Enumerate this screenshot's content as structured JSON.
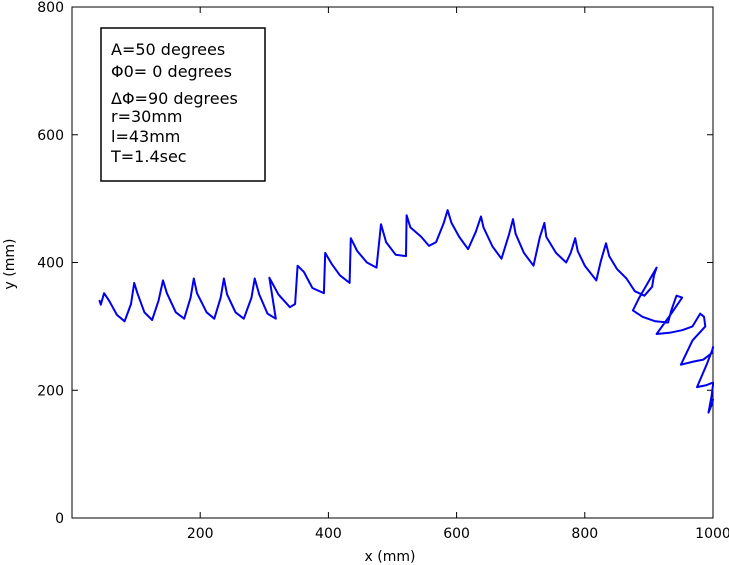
{
  "chart_data": {
    "type": "line",
    "title": "",
    "xlabel": "x (mm)",
    "ylabel": "y (mm)",
    "xlim": [
      0,
      1000
    ],
    "ylim": [
      0,
      800
    ],
    "xticks": [
      {
        "value": 200,
        "label": "200"
      },
      {
        "value": 400,
        "label": "400"
      },
      {
        "value": 600,
        "label": "600"
      },
      {
        "value": 800,
        "label": "800"
      },
      {
        "value": 1000,
        "label": "1000"
      }
    ],
    "yticks": [
      {
        "value": 0,
        "label": "0"
      },
      {
        "value": 200,
        "label": "200"
      },
      {
        "value": 400,
        "label": "400"
      },
      {
        "value": 600,
        "label": "600"
      },
      {
        "value": 800,
        "label": "800"
      }
    ],
    "grid": false,
    "legend_position": "top-left",
    "annotations": [
      "A=50 degrees",
      "Φ0= 0 degrees",
      "ΔΦ=90 degrees",
      "r=30mm",
      "l=43mm",
      "T=1.4sec"
    ],
    "series": [
      {
        "color": "#0000ee",
        "points": [
          [
            43,
            340
          ],
          [
            45,
            334
          ],
          [
            48,
            345
          ],
          [
            50,
            352
          ],
          [
            58,
            340
          ],
          [
            70,
            318
          ],
          [
            82,
            308
          ],
          [
            92,
            335
          ],
          [
            97,
            368
          ],
          [
            102,
            352
          ],
          [
            113,
            322
          ],
          [
            125,
            310
          ],
          [
            135,
            340
          ],
          [
            142,
            372
          ],
          [
            148,
            352
          ],
          [
            162,
            322
          ],
          [
            175,
            312
          ],
          [
            185,
            345
          ],
          [
            190,
            375
          ],
          [
            195,
            352
          ],
          [
            210,
            322
          ],
          [
            222,
            312
          ],
          [
            232,
            345
          ],
          [
            237,
            375
          ],
          [
            242,
            350
          ],
          [
            255,
            322
          ],
          [
            268,
            312
          ],
          [
            280,
            345
          ],
          [
            285,
            375
          ],
          [
            292,
            350
          ],
          [
            305,
            320
          ],
          [
            318,
            312
          ],
          [
            308,
            376
          ],
          [
            322,
            350
          ],
          [
            340,
            330
          ],
          [
            348,
            335
          ],
          [
            352,
            395
          ],
          [
            362,
            385
          ],
          [
            375,
            360
          ],
          [
            393,
            352
          ],
          [
            395,
            415
          ],
          [
            405,
            398
          ],
          [
            418,
            380
          ],
          [
            433,
            368
          ],
          [
            435,
            438
          ],
          [
            445,
            418
          ],
          [
            460,
            400
          ],
          [
            475,
            392
          ],
          [
            482,
            460
          ],
          [
            490,
            432
          ],
          [
            505,
            412
          ],
          [
            521,
            410
          ],
          [
            522,
            474
          ],
          [
            528,
            455
          ],
          [
            545,
            440
          ],
          [
            557,
            426
          ],
          [
            568,
            432
          ],
          [
            580,
            462
          ],
          [
            586,
            482
          ],
          [
            592,
            462
          ],
          [
            604,
            440
          ],
          [
            618,
            421
          ],
          [
            630,
            448
          ],
          [
            638,
            472
          ],
          [
            642,
            455
          ],
          [
            656,
            425
          ],
          [
            670,
            406
          ],
          [
            682,
            445
          ],
          [
            688,
            468
          ],
          [
            692,
            445
          ],
          [
            705,
            415
          ],
          [
            720,
            395
          ],
          [
            730,
            440
          ],
          [
            737,
            462
          ],
          [
            740,
            440
          ],
          [
            755,
            415
          ],
          [
            771,
            400
          ],
          [
            778,
            415
          ],
          [
            785,
            438
          ],
          [
            789,
            418
          ],
          [
            800,
            395
          ],
          [
            818,
            372
          ],
          [
            825,
            402
          ],
          [
            833,
            430
          ],
          [
            838,
            410
          ],
          [
            850,
            390
          ],
          [
            865,
            375
          ],
          [
            878,
            355
          ],
          [
            893,
            348
          ],
          [
            905,
            362
          ],
          [
            908,
            380
          ],
          [
            912,
            392
          ],
          [
            885,
            345
          ],
          [
            875,
            325
          ],
          [
            890,
            315
          ],
          [
            910,
            308
          ],
          [
            930,
            306
          ],
          [
            935,
            325
          ],
          [
            943,
            348
          ],
          [
            952,
            345
          ],
          [
            935,
            320
          ],
          [
            912,
            288
          ],
          [
            932,
            290
          ],
          [
            952,
            294
          ],
          [
            968,
            300
          ],
          [
            980,
            320
          ],
          [
            986,
            315
          ],
          [
            988,
            300
          ],
          [
            968,
            278
          ],
          [
            950,
            240
          ],
          [
            970,
            245
          ],
          [
            985,
            248
          ],
          [
            998,
            258
          ],
          [
            1000,
            268
          ],
          [
            1002,
            266
          ],
          [
            990,
            240
          ],
          [
            975,
            205
          ],
          [
            990,
            208
          ],
          [
            1000,
            212
          ],
          [
            1005,
            208
          ],
          [
            998,
            192
          ],
          [
            993,
            165
          ],
          [
            999,
            180
          ],
          [
            1004,
            186
          ]
        ]
      }
    ]
  }
}
